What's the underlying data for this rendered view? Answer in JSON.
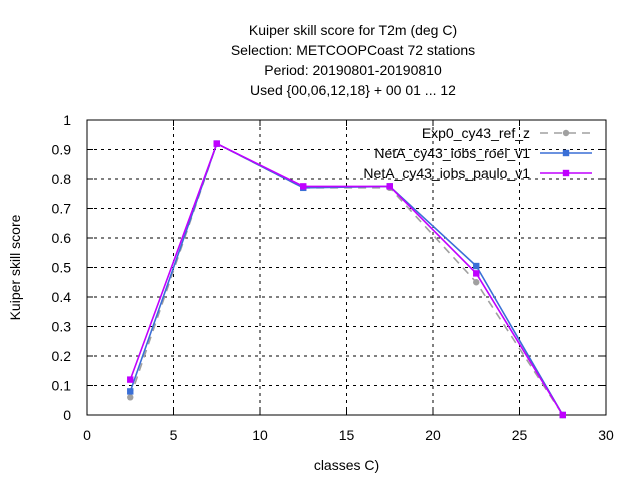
{
  "chart_data": {
    "type": "line",
    "title_lines": [
      "Kuiper skill score  for T2m (deg C)",
      "Selection: METCOOPCoast     72 stations",
      "Period: 20190801-20190810",
      "Used {00,06,12,18} + 00 01 ... 12"
    ],
    "xlabel": "classes C)",
    "ylabel": "Kuiper skill score",
    "xlim": [
      0,
      30
    ],
    "ylim": [
      0,
      1
    ],
    "xticks": [
      0,
      5,
      10,
      15,
      20,
      25,
      30
    ],
    "yticks": [
      0,
      0.1,
      0.2,
      0.3,
      0.4,
      0.5,
      0.6,
      0.7,
      0.8,
      0.9,
      1
    ],
    "grid": "dashed",
    "legend_position": "top-right",
    "x": [
      2.5,
      7.5,
      12.5,
      17.5,
      22.5,
      27.5
    ],
    "series": [
      {
        "name": "Exp0_cy43_ref_z",
        "color": "#a0a0a0",
        "dash": true,
        "marker": "circle",
        "values": [
          0.06,
          0.92,
          0.77,
          0.77,
          0.45,
          0.0
        ]
      },
      {
        "name": "NetA_cy43_iobs_roel_v1",
        "color": "#3a6fd6",
        "dash": false,
        "marker": "square",
        "values": [
          0.08,
          0.92,
          0.77,
          0.775,
          0.505,
          0.0
        ]
      },
      {
        "name": "NetA_cy43_iobs_paulo_v1",
        "color": "#c000ff",
        "dash": false,
        "marker": "square",
        "values": [
          0.12,
          0.92,
          0.775,
          0.775,
          0.48,
          0.0
        ]
      }
    ]
  }
}
